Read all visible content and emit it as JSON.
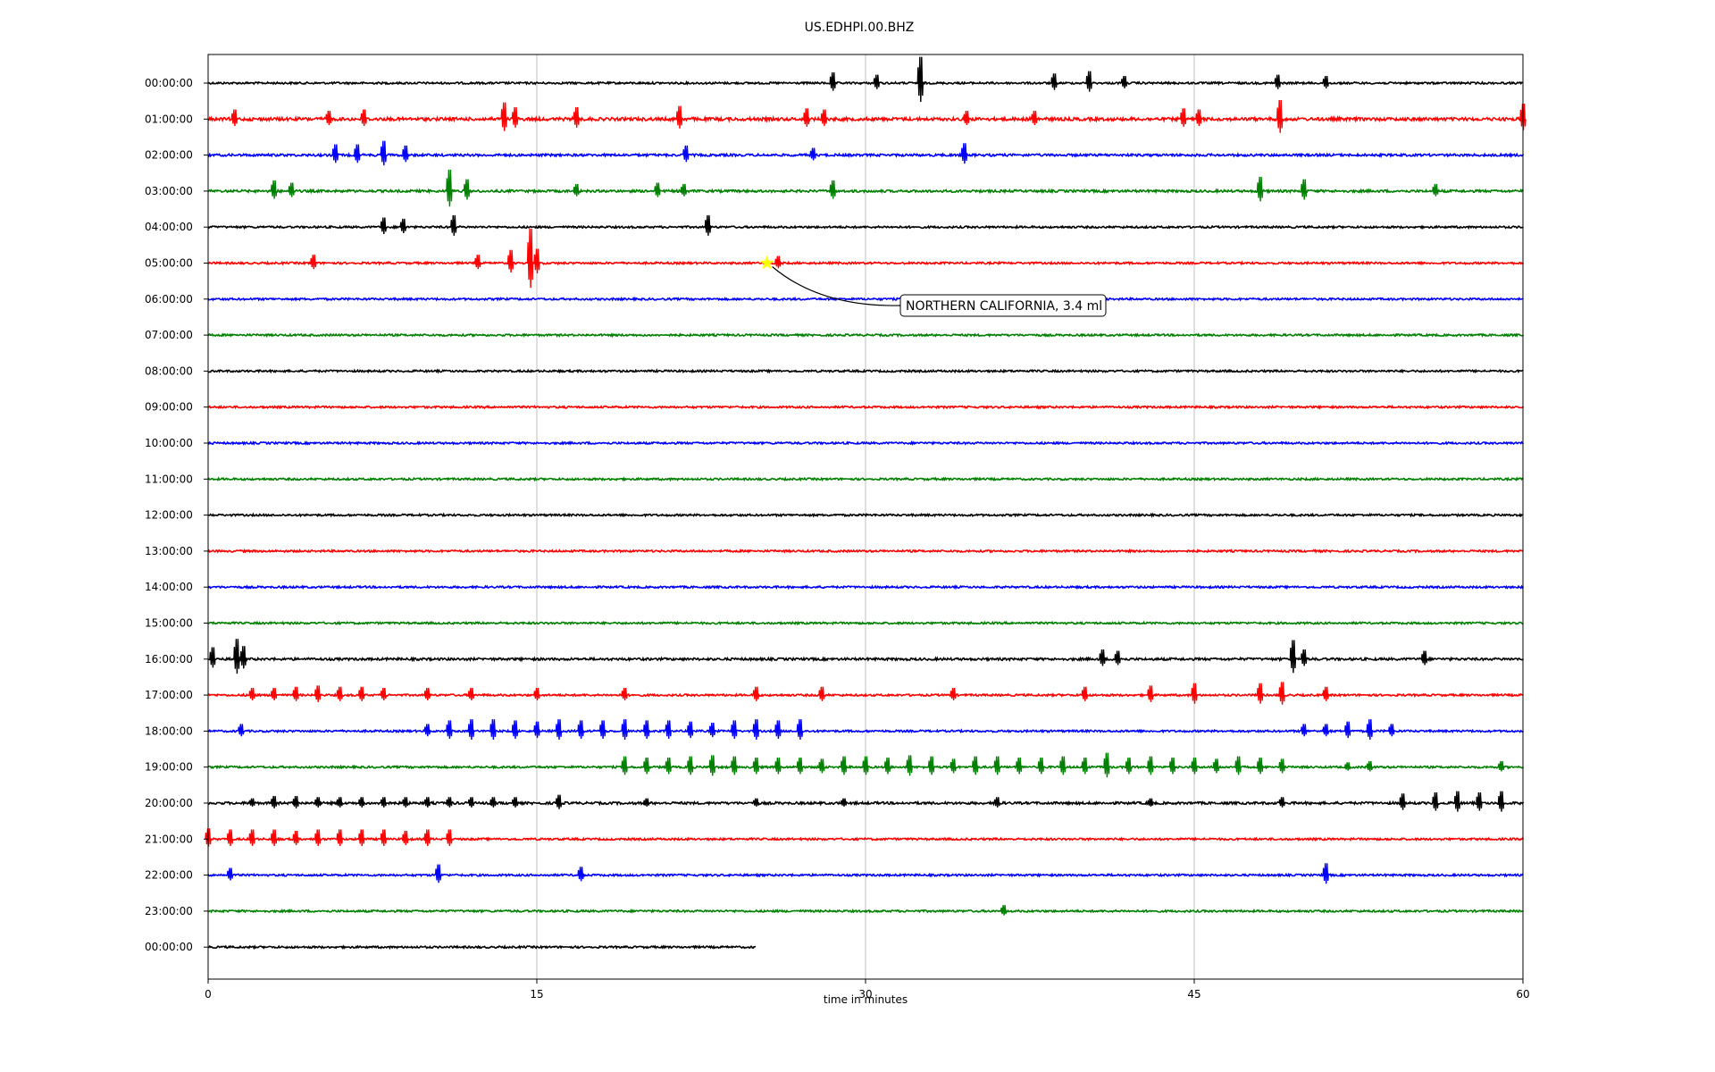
{
  "chart_data": {
    "type": "line",
    "title": "US.EDHPI.00.BHZ",
    "xlabel": "time in minutes",
    "ylabel": "",
    "xlim": [
      0,
      60
    ],
    "x_ticks": [
      "0",
      "15",
      "30",
      "45",
      "60"
    ],
    "grid": "vertical",
    "legend": "none",
    "series_colors": [
      "#000000",
      "#ff0000",
      "#0000ff",
      "#008000"
    ],
    "rows": [
      {
        "label": "00:00:00",
        "color": "#000000",
        "end_minute": 60,
        "noise": 0.5,
        "spikes": [
          [
            28.5,
            0.9
          ],
          [
            30.5,
            0.7
          ],
          [
            32.5,
            2.2
          ],
          [
            38.6,
            0.8
          ],
          [
            40.2,
            1.0
          ],
          [
            41.8,
            0.6
          ],
          [
            48.8,
            0.7
          ],
          [
            51,
            0.6
          ]
        ]
      },
      {
        "label": "01:00:00",
        "color": "#ff0000",
        "end_minute": 60,
        "noise": 0.8,
        "spikes": [
          [
            1.2,
            0.8
          ],
          [
            5.5,
            0.7
          ],
          [
            7.1,
            0.8
          ],
          [
            13.5,
            1.4
          ],
          [
            14,
            1.0
          ],
          [
            16.8,
            1.0
          ],
          [
            21.5,
            1.1
          ],
          [
            27.3,
            0.9
          ],
          [
            28.1,
            0.8
          ],
          [
            34.6,
            0.7
          ],
          [
            37.7,
            0.7
          ],
          [
            44.5,
            0.9
          ],
          [
            45.2,
            0.8
          ],
          [
            48.9,
            1.6
          ],
          [
            60,
            1.3
          ]
        ]
      },
      {
        "label": "02:00:00",
        "color": "#0000ff",
        "end_minute": 60,
        "noise": 0.6,
        "spikes": [
          [
            5.8,
            0.9
          ],
          [
            6.8,
            0.9
          ],
          [
            8,
            1.2
          ],
          [
            9,
            0.8
          ],
          [
            21.8,
            0.8
          ],
          [
            27.6,
            0.6
          ],
          [
            34.5,
            1.0
          ]
        ]
      },
      {
        "label": "03:00:00",
        "color": "#008000",
        "end_minute": 60,
        "noise": 0.6,
        "spikes": [
          [
            3,
            0.9
          ],
          [
            3.8,
            0.7
          ],
          [
            11,
            1.8
          ],
          [
            11.8,
            1.0
          ],
          [
            16.8,
            0.6
          ],
          [
            20.5,
            0.7
          ],
          [
            21.7,
            0.6
          ],
          [
            28.5,
            0.9
          ],
          [
            48,
            1.2
          ],
          [
            50,
            1.0
          ],
          [
            56,
            0.6
          ]
        ]
      },
      {
        "label": "04:00:00",
        "color": "#000000",
        "end_minute": 60,
        "noise": 0.5,
        "spikes": [
          [
            8,
            0.8
          ],
          [
            8.9,
            0.7
          ],
          [
            11.2,
            1.0
          ],
          [
            22.8,
            1.0
          ]
        ]
      },
      {
        "label": "05:00:00",
        "color": "#ff0000",
        "end_minute": 60,
        "noise": 0.5,
        "spikes": [
          [
            4.8,
            0.7
          ],
          [
            12.3,
            0.7
          ],
          [
            13.8,
            1.1
          ],
          [
            14.7,
            2.9
          ],
          [
            15,
            1.2
          ],
          [
            26,
            0.6
          ]
        ]
      },
      {
        "label": "06:00:00",
        "color": "#0000ff",
        "end_minute": 60,
        "noise": 0.5,
        "spikes": []
      },
      {
        "label": "07:00:00",
        "color": "#008000",
        "end_minute": 60,
        "noise": 0.5,
        "spikes": []
      },
      {
        "label": "08:00:00",
        "color": "#000000",
        "end_minute": 60,
        "noise": 0.5,
        "spikes": []
      },
      {
        "label": "09:00:00",
        "color": "#ff0000",
        "end_minute": 60,
        "noise": 0.5,
        "spikes": []
      },
      {
        "label": "10:00:00",
        "color": "#0000ff",
        "end_minute": 60,
        "noise": 0.5,
        "spikes": []
      },
      {
        "label": "11:00:00",
        "color": "#008000",
        "end_minute": 60,
        "noise": 0.5,
        "spikes": []
      },
      {
        "label": "12:00:00",
        "color": "#000000",
        "end_minute": 60,
        "noise": 0.5,
        "spikes": []
      },
      {
        "label": "13:00:00",
        "color": "#ff0000",
        "end_minute": 60,
        "noise": 0.5,
        "spikes": []
      },
      {
        "label": "14:00:00",
        "color": "#0000ff",
        "end_minute": 60,
        "noise": 0.5,
        "spikes": []
      },
      {
        "label": "15:00:00",
        "color": "#008000",
        "end_minute": 60,
        "noise": 0.5,
        "spikes": []
      },
      {
        "label": "16:00:00",
        "color": "#000000",
        "end_minute": 60,
        "noise": 0.6,
        "spikes": [
          [
            0.2,
            1.0
          ],
          [
            1.3,
            1.7
          ],
          [
            1.6,
            1.1
          ],
          [
            40.8,
            0.8
          ],
          [
            41.5,
            0.7
          ],
          [
            49.5,
            1.6
          ],
          [
            50,
            0.8
          ],
          [
            55.5,
            0.7
          ]
        ]
      },
      {
        "label": "17:00:00",
        "color": "#ff0000",
        "end_minute": 60,
        "noise": 0.5,
        "spikes": [
          [
            2,
            0.6
          ],
          [
            3,
            0.6
          ],
          [
            4,
            0.7
          ],
          [
            5,
            0.8
          ],
          [
            6,
            0.7
          ],
          [
            7,
            0.7
          ],
          [
            8,
            0.6
          ],
          [
            10,
            0.6
          ],
          [
            12,
            0.6
          ],
          [
            15,
            0.6
          ],
          [
            19,
            0.6
          ],
          [
            25,
            0.7
          ],
          [
            28,
            0.7
          ],
          [
            34,
            0.6
          ],
          [
            40,
            0.7
          ],
          [
            43,
            0.8
          ],
          [
            45,
            1.0
          ],
          [
            48,
            1.0
          ],
          [
            49,
            1.1
          ],
          [
            51,
            0.7
          ]
        ]
      },
      {
        "label": "18:00:00",
        "color": "#0000ff",
        "end_minute": 60,
        "noise": 0.5,
        "spikes": [
          [
            1.5,
            0.6
          ],
          [
            10,
            0.6
          ],
          [
            11,
            0.9
          ],
          [
            12,
            1.0
          ],
          [
            13,
            1.0
          ],
          [
            14,
            0.9
          ],
          [
            15,
            0.8
          ],
          [
            16,
            1.0
          ],
          [
            17,
            0.9
          ],
          [
            18,
            0.9
          ],
          [
            19,
            1.0
          ],
          [
            20,
            0.9
          ],
          [
            21,
            0.9
          ],
          [
            22,
            0.8
          ],
          [
            23,
            0.7
          ],
          [
            24,
            0.9
          ],
          [
            25,
            1.0
          ],
          [
            26,
            0.9
          ],
          [
            27,
            1.0
          ],
          [
            50,
            0.6
          ],
          [
            51,
            0.6
          ],
          [
            52,
            0.8
          ],
          [
            53,
            1.0
          ],
          [
            54,
            0.6
          ]
        ]
      },
      {
        "label": "19:00:00",
        "color": "#008000",
        "end_minute": 60,
        "noise": 0.5,
        "spikes": [
          [
            19,
            0.9
          ],
          [
            20,
            0.8
          ],
          [
            21,
            0.8
          ],
          [
            22,
            0.9
          ],
          [
            23,
            1.0
          ],
          [
            24,
            0.9
          ],
          [
            25,
            0.8
          ],
          [
            26,
            0.8
          ],
          [
            27,
            0.8
          ],
          [
            28,
            0.7
          ],
          [
            29,
            0.9
          ],
          [
            30,
            0.9
          ],
          [
            31,
            0.8
          ],
          [
            32,
            1.0
          ],
          [
            33,
            0.9
          ],
          [
            34,
            0.7
          ],
          [
            35,
            0.9
          ],
          [
            36,
            0.9
          ],
          [
            37,
            0.8
          ],
          [
            38,
            0.8
          ],
          [
            39,
            0.9
          ],
          [
            40,
            0.8
          ],
          [
            41,
            1.2
          ],
          [
            42,
            0.8
          ],
          [
            43,
            0.9
          ],
          [
            44,
            0.8
          ],
          [
            45,
            0.8
          ],
          [
            46,
            0.7
          ],
          [
            47,
            0.9
          ],
          [
            48,
            0.8
          ],
          [
            49,
            0.7
          ],
          [
            52,
            0.4
          ],
          [
            53,
            0.5
          ],
          [
            59,
            0.5
          ]
        ]
      },
      {
        "label": "20:00:00",
        "color": "#000000",
        "end_minute": 60,
        "noise": 0.6,
        "spikes": [
          [
            2,
            0.4
          ],
          [
            3,
            0.6
          ],
          [
            4,
            0.6
          ],
          [
            5,
            0.5
          ],
          [
            6,
            0.5
          ],
          [
            7,
            0.5
          ],
          [
            8,
            0.5
          ],
          [
            9,
            0.5
          ],
          [
            10,
            0.5
          ],
          [
            11,
            0.5
          ],
          [
            12,
            0.5
          ],
          [
            13,
            0.5
          ],
          [
            14,
            0.5
          ],
          [
            16,
            0.7
          ],
          [
            20,
            0.4
          ],
          [
            25,
            0.4
          ],
          [
            29,
            0.4
          ],
          [
            36,
            0.5
          ],
          [
            43,
            0.4
          ],
          [
            49,
            0.5
          ],
          [
            54.5,
            0.8
          ],
          [
            56,
            0.9
          ],
          [
            57,
            1.0
          ],
          [
            58,
            0.9
          ],
          [
            59,
            1.0
          ]
        ]
      },
      {
        "label": "21:00:00",
        "color": "#ff0000",
        "end_minute": 60,
        "noise": 0.5,
        "spikes": [
          [
            0,
            0.9
          ],
          [
            1,
            0.8
          ],
          [
            2,
            0.8
          ],
          [
            3,
            0.8
          ],
          [
            4,
            0.7
          ],
          [
            5,
            0.8
          ],
          [
            6,
            0.8
          ],
          [
            7,
            0.8
          ],
          [
            8,
            0.8
          ],
          [
            9,
            0.7
          ],
          [
            10,
            0.8
          ],
          [
            11,
            0.8
          ]
        ]
      },
      {
        "label": "22:00:00",
        "color": "#0000ff",
        "end_minute": 60,
        "noise": 0.5,
        "spikes": [
          [
            1,
            0.6
          ],
          [
            10.5,
            0.9
          ],
          [
            17,
            0.7
          ],
          [
            51,
            1.0
          ]
        ]
      },
      {
        "label": "23:00:00",
        "color": "#008000",
        "end_minute": 60,
        "noise": 0.5,
        "spikes": [
          [
            36.3,
            0.5
          ]
        ]
      },
      {
        "label": "00:00:00",
        "color": "#000000",
        "end_minute": 25,
        "noise": 0.5,
        "spikes": []
      }
    ],
    "annotations": [
      {
        "text": "NORTHERN CALIFORNIA, 3.4 ml",
        "row": 5,
        "x": 25.5,
        "marker": "star",
        "marker_color": "#ffff00"
      }
    ]
  }
}
